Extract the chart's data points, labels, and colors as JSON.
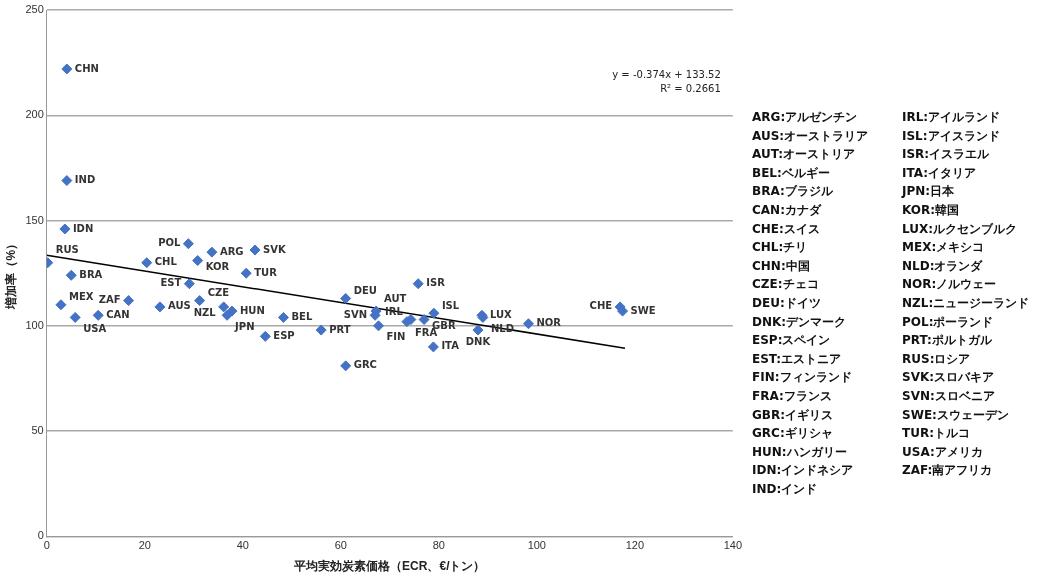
{
  "chart_data": {
    "type": "scatter",
    "xlabel": "平均実効炭素価格（ECR、€/トン）",
    "ylabel": "増加率（%）",
    "xlim": [
      0,
      140
    ],
    "xticks": [
      0,
      20,
      40,
      60,
      80,
      100,
      120,
      140
    ],
    "ylim": [
      0,
      250
    ],
    "yticks": [
      0,
      50,
      100,
      150,
      200,
      250
    ],
    "grid": "y",
    "legend": false,
    "marker": "diamond",
    "series": [
      {
        "name": "CHN",
        "x": [
          4.1
        ],
        "values": [
          222
        ],
        "color": "#4472c4"
      },
      {
        "name": "IND",
        "x": [
          4.1
        ],
        "values": [
          169
        ],
        "color": "#4472c4"
      },
      {
        "name": "IDN",
        "x": [
          3.7
        ],
        "values": [
          146
        ],
        "color": "#4472c4"
      },
      {
        "name": "RUS",
        "x": [
          0.2
        ],
        "values": [
          130
        ],
        "color": "#4472c4"
      },
      {
        "name": "BRA",
        "x": [
          5
        ],
        "values": [
          124
        ],
        "color": "#4472c4"
      },
      {
        "name": "MEX",
        "x": [
          2.9
        ],
        "values": [
          110
        ],
        "color": "#4472c4"
      },
      {
        "name": "USA",
        "x": [
          5.8
        ],
        "values": [
          104
        ],
        "color": "#4472c4"
      },
      {
        "name": "CAN",
        "x": [
          10.5
        ],
        "values": [
          105
        ],
        "color": "#4472c4"
      },
      {
        "name": "ZAF",
        "x": [
          16.7
        ],
        "values": [
          112
        ],
        "color": "#4472c4"
      },
      {
        "name": "AUS",
        "x": [
          23.1
        ],
        "values": [
          109
        ],
        "color": "#4472c4"
      },
      {
        "name": "CHL",
        "x": [
          20.4
        ],
        "values": [
          130
        ],
        "color": "#4472c4"
      },
      {
        "name": "POL",
        "x": [
          28.9
        ],
        "values": [
          139
        ],
        "color": "#4472c4"
      },
      {
        "name": "KOR",
        "x": [
          30.8
        ],
        "values": [
          131
        ],
        "color": "#4472c4"
      },
      {
        "name": "ARG",
        "x": [
          33.7
        ],
        "values": [
          135
        ],
        "color": "#4472c4"
      },
      {
        "name": "SVK",
        "x": [
          42.5
        ],
        "values": [
          136
        ],
        "color": "#4472c4"
      },
      {
        "name": "TUR",
        "x": [
          40.7
        ],
        "values": [
          125
        ],
        "color": "#4472c4"
      },
      {
        "name": "EST",
        "x": [
          29.1
        ],
        "values": [
          120
        ],
        "color": "#4472c4"
      },
      {
        "name": "CZE",
        "x": [
          31.2
        ],
        "values": [
          112
        ],
        "color": "#4472c4"
      },
      {
        "name": "NZL",
        "x": [
          36.1
        ],
        "values": [
          109
        ],
        "color": "#4472c4"
      },
      {
        "name": "JPN",
        "x": [
          36.8
        ],
        "values": [
          105
        ],
        "color": "#4472c4"
      },
      {
        "name": "HUN",
        "x": [
          37.8
        ],
        "values": [
          107
        ],
        "color": "#4472c4"
      },
      {
        "name": "BEL",
        "x": [
          48.3
        ],
        "values": [
          104
        ],
        "color": "#4472c4"
      },
      {
        "name": "ESP",
        "x": [
          44.6
        ],
        "values": [
          95
        ],
        "color": "#4472c4"
      },
      {
        "name": "PRT",
        "x": [
          56
        ],
        "values": [
          98
        ],
        "color": "#4472c4"
      },
      {
        "name": "GRC",
        "x": [
          61
        ],
        "values": [
          81
        ],
        "color": "#4472c4"
      },
      {
        "name": "DEU",
        "x": [
          61
        ],
        "values": [
          113
        ],
        "color": "#4472c4"
      },
      {
        "name": "AUT",
        "x": [
          67.2
        ],
        "values": [
          107
        ],
        "color": "#4472c4"
      },
      {
        "name": "SVN",
        "x": [
          67
        ],
        "values": [
          105
        ],
        "color": "#4472c4"
      },
      {
        "name": "FIN",
        "x": [
          67.7
        ],
        "values": [
          100
        ],
        "color": "#4472c4"
      },
      {
        "name": "FRA",
        "x": [
          73.5
        ],
        "values": [
          102
        ],
        "color": "#4472c4"
      },
      {
        "name": "IRL",
        "x": [
          74.3
        ],
        "values": [
          103
        ],
        "color": "#4472c4"
      },
      {
        "name": "GBR",
        "x": [
          77
        ],
        "values": [
          103
        ],
        "color": "#4472c4"
      },
      {
        "name": "ISL",
        "x": [
          79
        ],
        "values": [
          106
        ],
        "color": "#4472c4"
      },
      {
        "name": "ISR",
        "x": [
          75.8
        ],
        "values": [
          120
        ],
        "color": "#4472c4"
      },
      {
        "name": "ITA",
        "x": [
          78.9
        ],
        "values": [
          90
        ],
        "color": "#4472c4"
      },
      {
        "name": "LUX",
        "x": [
          88.8
        ],
        "values": [
          105
        ],
        "color": "#4472c4"
      },
      {
        "name": "NLD",
        "x": [
          89
        ],
        "values": [
          104
        ],
        "color": "#4472c4"
      },
      {
        "name": "DNK",
        "x": [
          88
        ],
        "values": [
          98
        ],
        "color": "#4472c4"
      },
      {
        "name": "NOR",
        "x": [
          98.3
        ],
        "values": [
          101
        ],
        "color": "#4472c4"
      },
      {
        "name": "CHE",
        "x": [
          117
        ],
        "values": [
          109
        ],
        "color": "#4472c4"
      },
      {
        "name": "SWE",
        "x": [
          117.5
        ],
        "values": [
          107
        ],
        "color": "#4472c4"
      },
      {
        "type": "line",
        "x": [
          0,
          118
        ],
        "values": [
          133.5,
          89.4
        ],
        "color": "#000000",
        "marker": "none"
      }
    ],
    "annotations": [
      "y = -0.374x + 133.52",
      "R² = 0.2661",
      "ARG:アルゼンチン",
      "AUS:オーストラリア",
      "AUT:オーストリア",
      "BEL:ベルギー",
      "BRA:ブラジル",
      "CAN:カナダ",
      "CHE:スイス",
      "CHL:チリ",
      "CHN:中国",
      "CZE:チェコ",
      "DEU:ドイツ",
      "DNK:デンマーク",
      "ESP:スペイン",
      "EST:エストニア",
      "FIN:フィンランド",
      "FRA:フランス",
      "GBR:イギリス",
      "GRC:ギリシャ",
      "HUN:ハンガリー",
      "IDN:インドネシア",
      "IND:インド",
      "IRL:アイルランド",
      "ISL:アイスランド",
      "ISR:イスラエル",
      "ITA:イタリア",
      "JPN:日本",
      "KOR:韓国",
      "LUX:ルクセンブルク",
      "MEX:メキシコ",
      "NLD:オランダ",
      "NOR:ノルウェー",
      "NZL:ニュージーランド",
      "POL:ポーランド",
      "PRT:ポルトガル",
      "RUS:ロシア",
      "SVK:スロバキア",
      "SVN:スロベニア",
      "SWE:スウェーデン",
      "TUR:トルコ",
      "USA:アメリカ",
      "ZAF:南アフリカ"
    ]
  }
}
